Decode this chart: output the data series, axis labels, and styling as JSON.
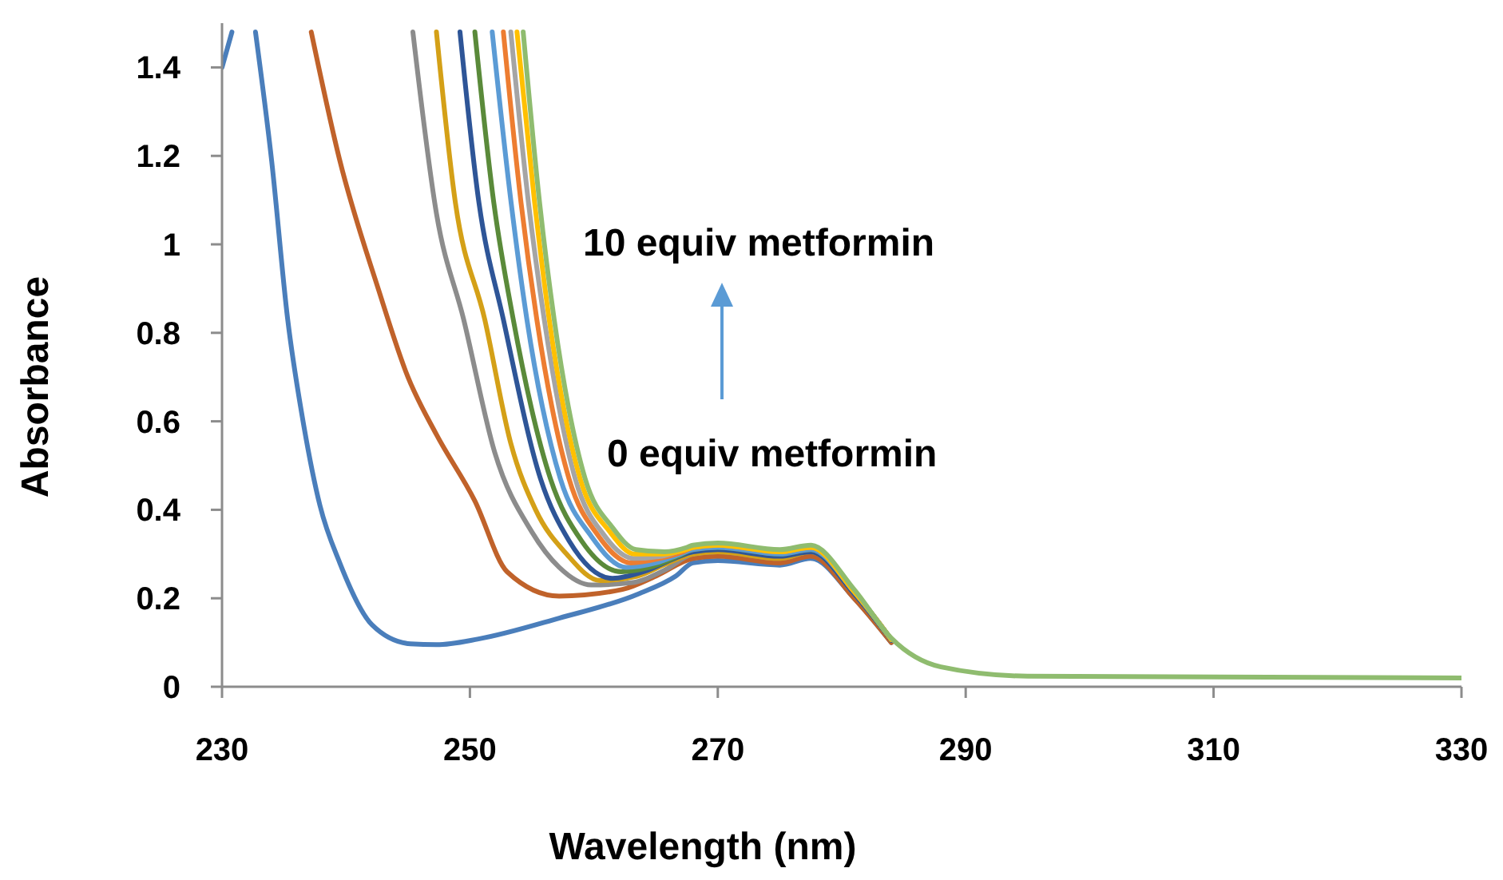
{
  "chart_data": {
    "type": "line",
    "xlabel": "Wavelength (nm)",
    "ylabel": "Absorbance",
    "xlim": [
      230,
      330
    ],
    "xticks": [
      230,
      250,
      270,
      290,
      310,
      330
    ],
    "ylim": [
      0,
      1.5
    ],
    "yticks": [
      0,
      0.2,
      0.4,
      0.6,
      0.8,
      {
        "value": 1,
        "label": "1"
      },
      1.2,
      1.4
    ],
    "grid": false,
    "line_style": "solid",
    "marker": "none",
    "annotations": [
      "10 equiv metformin",
      "0 equiv metformin"
    ],
    "series": [
      {
        "color": "#4a7ebb",
        "x": [
          230,
          230.8,
          231.5,
          232.7,
          234,
          235.3,
          236.6,
          237.9,
          239.5,
          242.1,
          245.2,
          247.3,
          250.7,
          257.2,
          263.6,
          266.6,
          268,
          270,
          275,
          277.5,
          281,
          284
        ],
        "values": [
          1.4,
          1.48,
          null,
          1.48,
          1.19,
          0.83,
          0.59,
          0.41,
          0.28,
          0.14,
          0.097,
          0.095,
          0.108,
          0.155,
          0.21,
          0.25,
          0.28,
          0.285,
          0.275,
          0.29,
          0.2,
          0.1
        ]
      },
      {
        "color": "#c0622a",
        "x": [
          237.2,
          239.5,
          242.6,
          245,
          247.3,
          250.4,
          253,
          257.2,
          262.3,
          265,
          268,
          270,
          275,
          277.5,
          281,
          284
        ],
        "values": [
          1.48,
          1.19,
          0.9,
          0.7,
          0.57,
          0.42,
          0.26,
          0.205,
          0.22,
          0.25,
          0.29,
          0.295,
          0.28,
          0.295,
          0.2,
          0.1
        ]
      },
      {
        "color": "#8c8c8c",
        "x": [
          245.4,
          247.3,
          249.5,
          252,
          255,
          257.2,
          259.8,
          263,
          265.8,
          268,
          270,
          275,
          277.5,
          281,
          284
        ],
        "values": [
          1.48,
          1.07,
          0.83,
          0.53,
          0.35,
          0.27,
          0.23,
          0.235,
          0.265,
          0.3,
          0.305,
          0.29,
          0.305,
          0.21,
          0.105
        ]
      },
      {
        "color": "#d4a017",
        "x": [
          247.3,
          248.8,
          251.2,
          253.3,
          255.3,
          257.8,
          260.5,
          263.5,
          266,
          268,
          270,
          275,
          277.5,
          281,
          284
        ],
        "values": [
          1.48,
          1.1,
          0.83,
          0.55,
          0.4,
          0.3,
          0.24,
          0.25,
          0.28,
          0.3,
          0.305,
          0.29,
          0.305,
          0.21,
          0.105
        ]
      },
      {
        "color": "#2e5597",
        "x": [
          249.2,
          250.7,
          252.7,
          255.7,
          258,
          261.5,
          264,
          266.5,
          268,
          270,
          275,
          277.5,
          281,
          284
        ],
        "values": [
          1.48,
          1.1,
          0.83,
          0.47,
          0.33,
          0.245,
          0.26,
          0.29,
          0.305,
          0.31,
          0.295,
          0.305,
          0.21,
          0.105
        ]
      },
      {
        "color": "#5a8a3a",
        "x": [
          250.4,
          251.9,
          253.5,
          256.5,
          259,
          262.2,
          264.5,
          266.8,
          268,
          270,
          275,
          277.5,
          281,
          284
        ],
        "values": [
          1.48,
          1.1,
          0.83,
          0.47,
          0.33,
          0.26,
          0.27,
          0.295,
          0.31,
          0.315,
          0.3,
          0.31,
          0.215,
          0.107
        ]
      },
      {
        "color": "#5b9bd5",
        "x": [
          251.8,
          253.3,
          254.6,
          257.3,
          259.8,
          262.6,
          265,
          267,
          268,
          270,
          275,
          277.5,
          281,
          284
        ],
        "values": [
          1.48,
          1.1,
          0.83,
          0.47,
          0.34,
          0.27,
          0.28,
          0.3,
          0.31,
          0.315,
          0.3,
          0.31,
          0.215,
          0.107
        ]
      },
      {
        "color": "#ed7d31",
        "x": [
          252.7,
          254.1,
          255.4,
          258,
          260.4,
          263,
          265.3,
          267.2,
          268,
          270,
          275,
          277.5,
          281,
          284
        ],
        "values": [
          1.48,
          1.1,
          0.83,
          0.47,
          0.34,
          0.28,
          0.29,
          0.305,
          0.315,
          0.32,
          0.305,
          0.315,
          0.215,
          0.107
        ]
      },
      {
        "color": "#a5a5a5",
        "x": [
          253.3,
          254.7,
          256,
          258.5,
          260.9,
          263.2,
          265.5,
          267.3,
          268,
          270,
          275,
          277.5,
          281,
          284
        ],
        "values": [
          1.48,
          1.1,
          0.83,
          0.47,
          0.34,
          0.29,
          0.295,
          0.31,
          0.315,
          0.32,
          0.305,
          0.315,
          0.215,
          0.107
        ]
      },
      {
        "color": "#ffc000",
        "x": [
          253.8,
          255.2,
          256.4,
          258.9,
          261.3,
          263.3,
          265.6,
          267.4,
          268,
          270,
          275,
          277.5,
          281,
          284
        ],
        "values": [
          1.48,
          1.1,
          0.83,
          0.47,
          0.35,
          0.3,
          0.3,
          0.31,
          0.315,
          0.32,
          0.305,
          0.315,
          0.215,
          0.107
        ]
      },
      {
        "color": "#8fbc6f",
        "x": [
          254.3,
          255.6,
          256.8,
          259.3,
          261.5,
          263.4,
          265.7,
          267.5,
          268,
          270,
          275,
          277.5,
          281,
          284,
          288,
          295,
          330
        ],
        "values": [
          1.48,
          1.1,
          0.83,
          0.47,
          0.36,
          0.31,
          0.305,
          0.315,
          0.32,
          0.325,
          0.31,
          0.32,
          0.22,
          0.11,
          0.045,
          0.024,
          0.02
        ]
      }
    ]
  }
}
